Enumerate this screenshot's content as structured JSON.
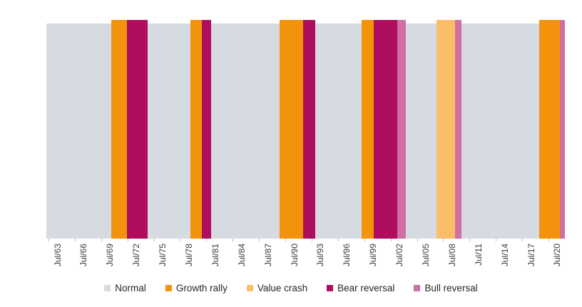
{
  "chart_data": {
    "type": "area",
    "subtype": "regime-timeline-bands",
    "title": "",
    "xlabel": "",
    "ylabel": "",
    "grid": false,
    "legend_position": "bottom-center",
    "x_tick_labels": [
      "Jul/63",
      "Jul/66",
      "Jul/69",
      "Jul/72",
      "Jul/75",
      "Jul/78",
      "Jul/81",
      "Jul/84",
      "Jul/87",
      "Jul/90",
      "Jul/93",
      "Jul/96",
      "Jul/99",
      "Jul/02",
      "Jul/05",
      "Jul/08",
      "Jul/11",
      "Jul/14",
      "Jul/17",
      "Jul/20"
    ],
    "colors": {
      "normal": "#d6dbe1",
      "growth_rally": "#f3920b",
      "value_crash": "#fbbd67",
      "bear_reversal": "#af0e5e",
      "bull_reversal": "#d06fa3"
    },
    "axis_style": {
      "tick_color": "#b4bbc1",
      "label_color": "#3d3d3d"
    },
    "legend": [
      {
        "label": "Normal",
        "key": "normal"
      },
      {
        "label": "Growth rally",
        "key": "growth_rally"
      },
      {
        "label": "Value crash",
        "key": "value_crash"
      },
      {
        "label": "Bear reversal",
        "key": "bear_reversal"
      },
      {
        "label": "Bull reversal",
        "key": "bull_reversal"
      }
    ],
    "segments": [
      {
        "regime": "Normal",
        "key": "normal",
        "start_frac": 0.0,
        "end_frac": 0.1252,
        "approx_start": "Jul/63",
        "approx_end": "Jul/70"
      },
      {
        "regime": "Growth rally",
        "key": "growth_rally",
        "start_frac": 0.1252,
        "end_frac": 0.1554,
        "approx_start": "Jul/70",
        "approx_end": "Jun/72"
      },
      {
        "regime": "Bear reversal",
        "key": "bear_reversal",
        "start_frac": 0.1554,
        "end_frac": 0.1953,
        "approx_start": "Jun/72",
        "approx_end": "Oct/74"
      },
      {
        "regime": "Normal",
        "key": "normal",
        "start_frac": 0.1953,
        "end_frac": 0.2779,
        "approx_start": "Oct/74",
        "approx_end": "Sep/79"
      },
      {
        "regime": "Growth rally",
        "key": "growth_rally",
        "start_frac": 0.2779,
        "end_frac": 0.2999,
        "approx_start": "Sep/79",
        "approx_end": "Jan/81"
      },
      {
        "regime": "Bear reversal",
        "key": "bear_reversal",
        "start_frac": 0.2999,
        "end_frac": 0.3178,
        "approx_start": "Jan/81",
        "approx_end": "Mar/82"
      },
      {
        "regime": "Normal",
        "key": "normal",
        "start_frac": 0.3178,
        "end_frac": 0.4498,
        "approx_start": "Mar/82",
        "approx_end": "Oct/89"
      },
      {
        "regime": "Growth rally",
        "key": "growth_rally",
        "start_frac": 0.4498,
        "end_frac": 0.4952,
        "approx_start": "Oct/89",
        "approx_end": "Jul/92"
      },
      {
        "regime": "Bear reversal",
        "key": "bear_reversal",
        "start_frac": 0.4952,
        "end_frac": 0.5186,
        "approx_start": "Jul/92",
        "approx_end": "Dec/93"
      },
      {
        "regime": "Normal",
        "key": "normal",
        "start_frac": 0.5186,
        "end_frac": 0.608,
        "approx_start": "Dec/93",
        "approx_end": "Mar/99"
      },
      {
        "regime": "Growth rally",
        "key": "growth_rally",
        "start_frac": 0.608,
        "end_frac": 0.6314,
        "approx_start": "Mar/99",
        "approx_end": "Aug/00"
      },
      {
        "regime": "Bear reversal",
        "key": "bear_reversal",
        "start_frac": 0.6314,
        "end_frac": 0.6768,
        "approx_start": "Aug/00",
        "approx_end": "Apr/03"
      },
      {
        "regime": "Bull reversal",
        "key": "bull_reversal",
        "start_frac": 0.6768,
        "end_frac": 0.6933,
        "approx_start": "Apr/03",
        "approx_end": "Apr/04"
      },
      {
        "regime": "Normal",
        "key": "normal",
        "start_frac": 0.6933,
        "end_frac": 0.7524,
        "approx_start": "Apr/04",
        "approx_end": "Sep/07"
      },
      {
        "regime": "Value crash",
        "key": "value_crash",
        "start_frac": 0.7524,
        "end_frac": 0.7882,
        "approx_start": "Sep/07",
        "approx_end": "Nov/09"
      },
      {
        "regime": "Bull reversal",
        "key": "bull_reversal",
        "start_frac": 0.7882,
        "end_frac": 0.8006,
        "approx_start": "Nov/09",
        "approx_end": "Aug/10"
      },
      {
        "regime": "Normal",
        "key": "normal",
        "start_frac": 0.8006,
        "end_frac": 0.9505,
        "approx_start": "Aug/10",
        "approx_end": "Jul/19"
      },
      {
        "regime": "Growth rally",
        "key": "growth_rally",
        "start_frac": 0.9505,
        "end_frac": 0.9904,
        "approx_start": "Jul/19",
        "approx_end": "Oct/21"
      },
      {
        "regime": "Bull reversal",
        "key": "bull_reversal",
        "start_frac": 0.9904,
        "end_frac": 1.0,
        "approx_start": "Oct/21",
        "approx_end": "Apr/22"
      }
    ]
  }
}
